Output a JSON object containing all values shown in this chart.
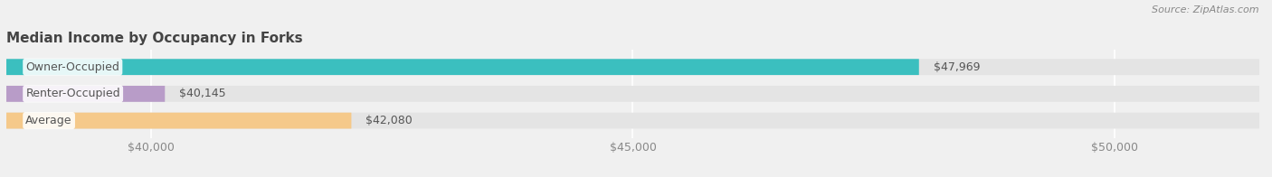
{
  "title": "Median Income by Occupancy in Forks",
  "source": "Source: ZipAtlas.com",
  "categories": [
    "Owner-Occupied",
    "Renter-Occupied",
    "Average"
  ],
  "values": [
    47969,
    40145,
    42080
  ],
  "bar_colors": [
    "#3bbfbf",
    "#b89cc8",
    "#f5c98a"
  ],
  "bar_labels": [
    "$47,969",
    "$40,145",
    "$42,080"
  ],
  "xlim": [
    38500,
    51500
  ],
  "xticks": [
    40000,
    45000,
    50000
  ],
  "xtick_labels": [
    "$40,000",
    "$45,000",
    "$50,000"
  ],
  "background_color": "#f0f0f0",
  "bar_bg_color": "#e4e4e4",
  "title_fontsize": 11,
  "label_fontsize": 9,
  "tick_fontsize": 9,
  "source_fontsize": 8,
  "bar_height": 0.6,
  "label_color_outside": "#555555",
  "category_label_color": "#555555"
}
